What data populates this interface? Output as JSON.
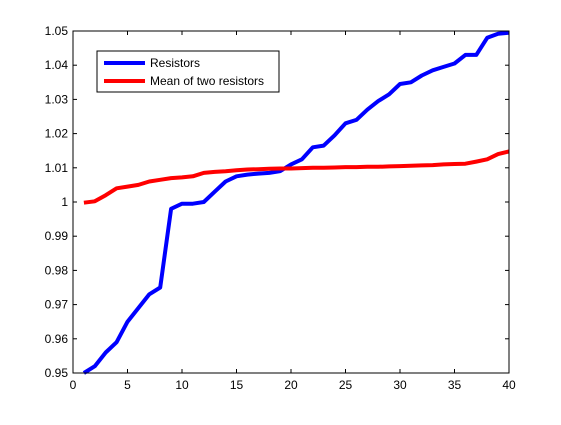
{
  "chart_data": {
    "type": "line",
    "title": "",
    "xlabel": "",
    "ylabel": "",
    "xlim": [
      0,
      40
    ],
    "ylim": [
      0.95,
      1.05
    ],
    "xticks": [
      0,
      5,
      10,
      15,
      20,
      25,
      30,
      35,
      40
    ],
    "xtick_labels": [
      "0",
      "5",
      "10",
      "15",
      "20",
      "25",
      "30",
      "35",
      "40"
    ],
    "yticks": [
      0.95,
      0.96,
      0.97,
      0.98,
      0.99,
      1.0,
      1.01,
      1.02,
      1.03,
      1.04,
      1.05
    ],
    "ytick_labels": [
      "0.95",
      "0.96",
      "0.97",
      "0.98",
      "0.99",
      "1",
      "1.01",
      "1.02",
      "1.03",
      "1.04",
      "1.05"
    ],
    "grid": false,
    "legend": {
      "placement": "top-left"
    },
    "x": [
      1,
      2,
      3,
      4,
      5,
      6,
      7,
      8,
      9,
      10,
      11,
      12,
      13,
      14,
      15,
      16,
      17,
      18,
      19,
      20,
      21,
      22,
      23,
      24,
      25,
      26,
      27,
      28,
      29,
      30,
      31,
      32,
      33,
      34,
      35,
      36,
      37,
      38,
      39,
      40
    ],
    "series": [
      {
        "name": "Resistors",
        "color": "#0000ff",
        "values": [
          0.95,
          0.952,
          0.956,
          0.959,
          0.965,
          0.969,
          0.973,
          0.975,
          0.998,
          0.9995,
          0.9995,
          1.0,
          1.003,
          1.006,
          1.0075,
          1.008,
          1.0083,
          1.0085,
          1.009,
          1.011,
          1.0125,
          1.016,
          1.0165,
          1.0195,
          1.023,
          1.024,
          1.027,
          1.0295,
          1.0315,
          1.0345,
          1.035,
          1.037,
          1.0385,
          1.0395,
          1.0405,
          1.043,
          1.043,
          1.048,
          1.0492,
          1.0495
        ]
      },
      {
        "name": "Mean of two resistors",
        "color": "#ff0000",
        "values": [
          0.9998,
          1.0002,
          1.002,
          1.004,
          1.0045,
          1.005,
          1.006,
          1.0065,
          1.007,
          1.0072,
          1.0075,
          1.0085,
          1.0088,
          1.009,
          1.0093,
          1.0095,
          1.0096,
          1.0097,
          1.0098,
          1.0098,
          1.0099,
          1.01,
          1.01,
          1.0101,
          1.0102,
          1.0102,
          1.0103,
          1.0103,
          1.0104,
          1.0105,
          1.0106,
          1.0107,
          1.0108,
          1.011,
          1.0111,
          1.0112,
          1.0118,
          1.0125,
          1.014,
          1.0148
        ]
      }
    ]
  }
}
